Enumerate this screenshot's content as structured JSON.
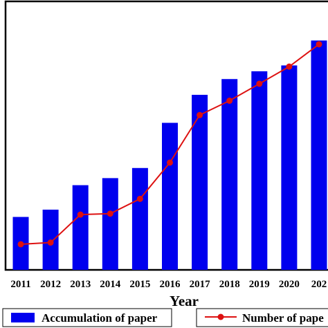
{
  "chart_data": {
    "type": "bar",
    "categories": [
      "2011",
      "2012",
      "2013",
      "2014",
      "2015",
      "2016",
      "2017",
      "2018",
      "2019",
      "2020",
      "202"
    ],
    "title": "",
    "xlabel": "Year",
    "ylabel": "",
    "ylim": [
      0,
      100
    ],
    "y_tick_labels_visible": false,
    "grid": false,
    "legend_position": "bottom",
    "series": [
      {
        "name": "Accumulation of paper",
        "type": "bar",
        "color": "#0000ee",
        "values": [
          22.5,
          25.6,
          36.0,
          39.0,
          43.3,
          62.5,
          74.4,
          81.1,
          84.4,
          86.9,
          97.5
        ]
      },
      {
        "name": "Number of pape",
        "type": "line",
        "color": "#dd1111",
        "values": [
          10.9,
          11.6,
          23.5,
          23.9,
          30.2,
          45.6,
          65.8,
          71.9,
          79.1,
          86.4,
          95.9
        ]
      }
    ]
  }
}
